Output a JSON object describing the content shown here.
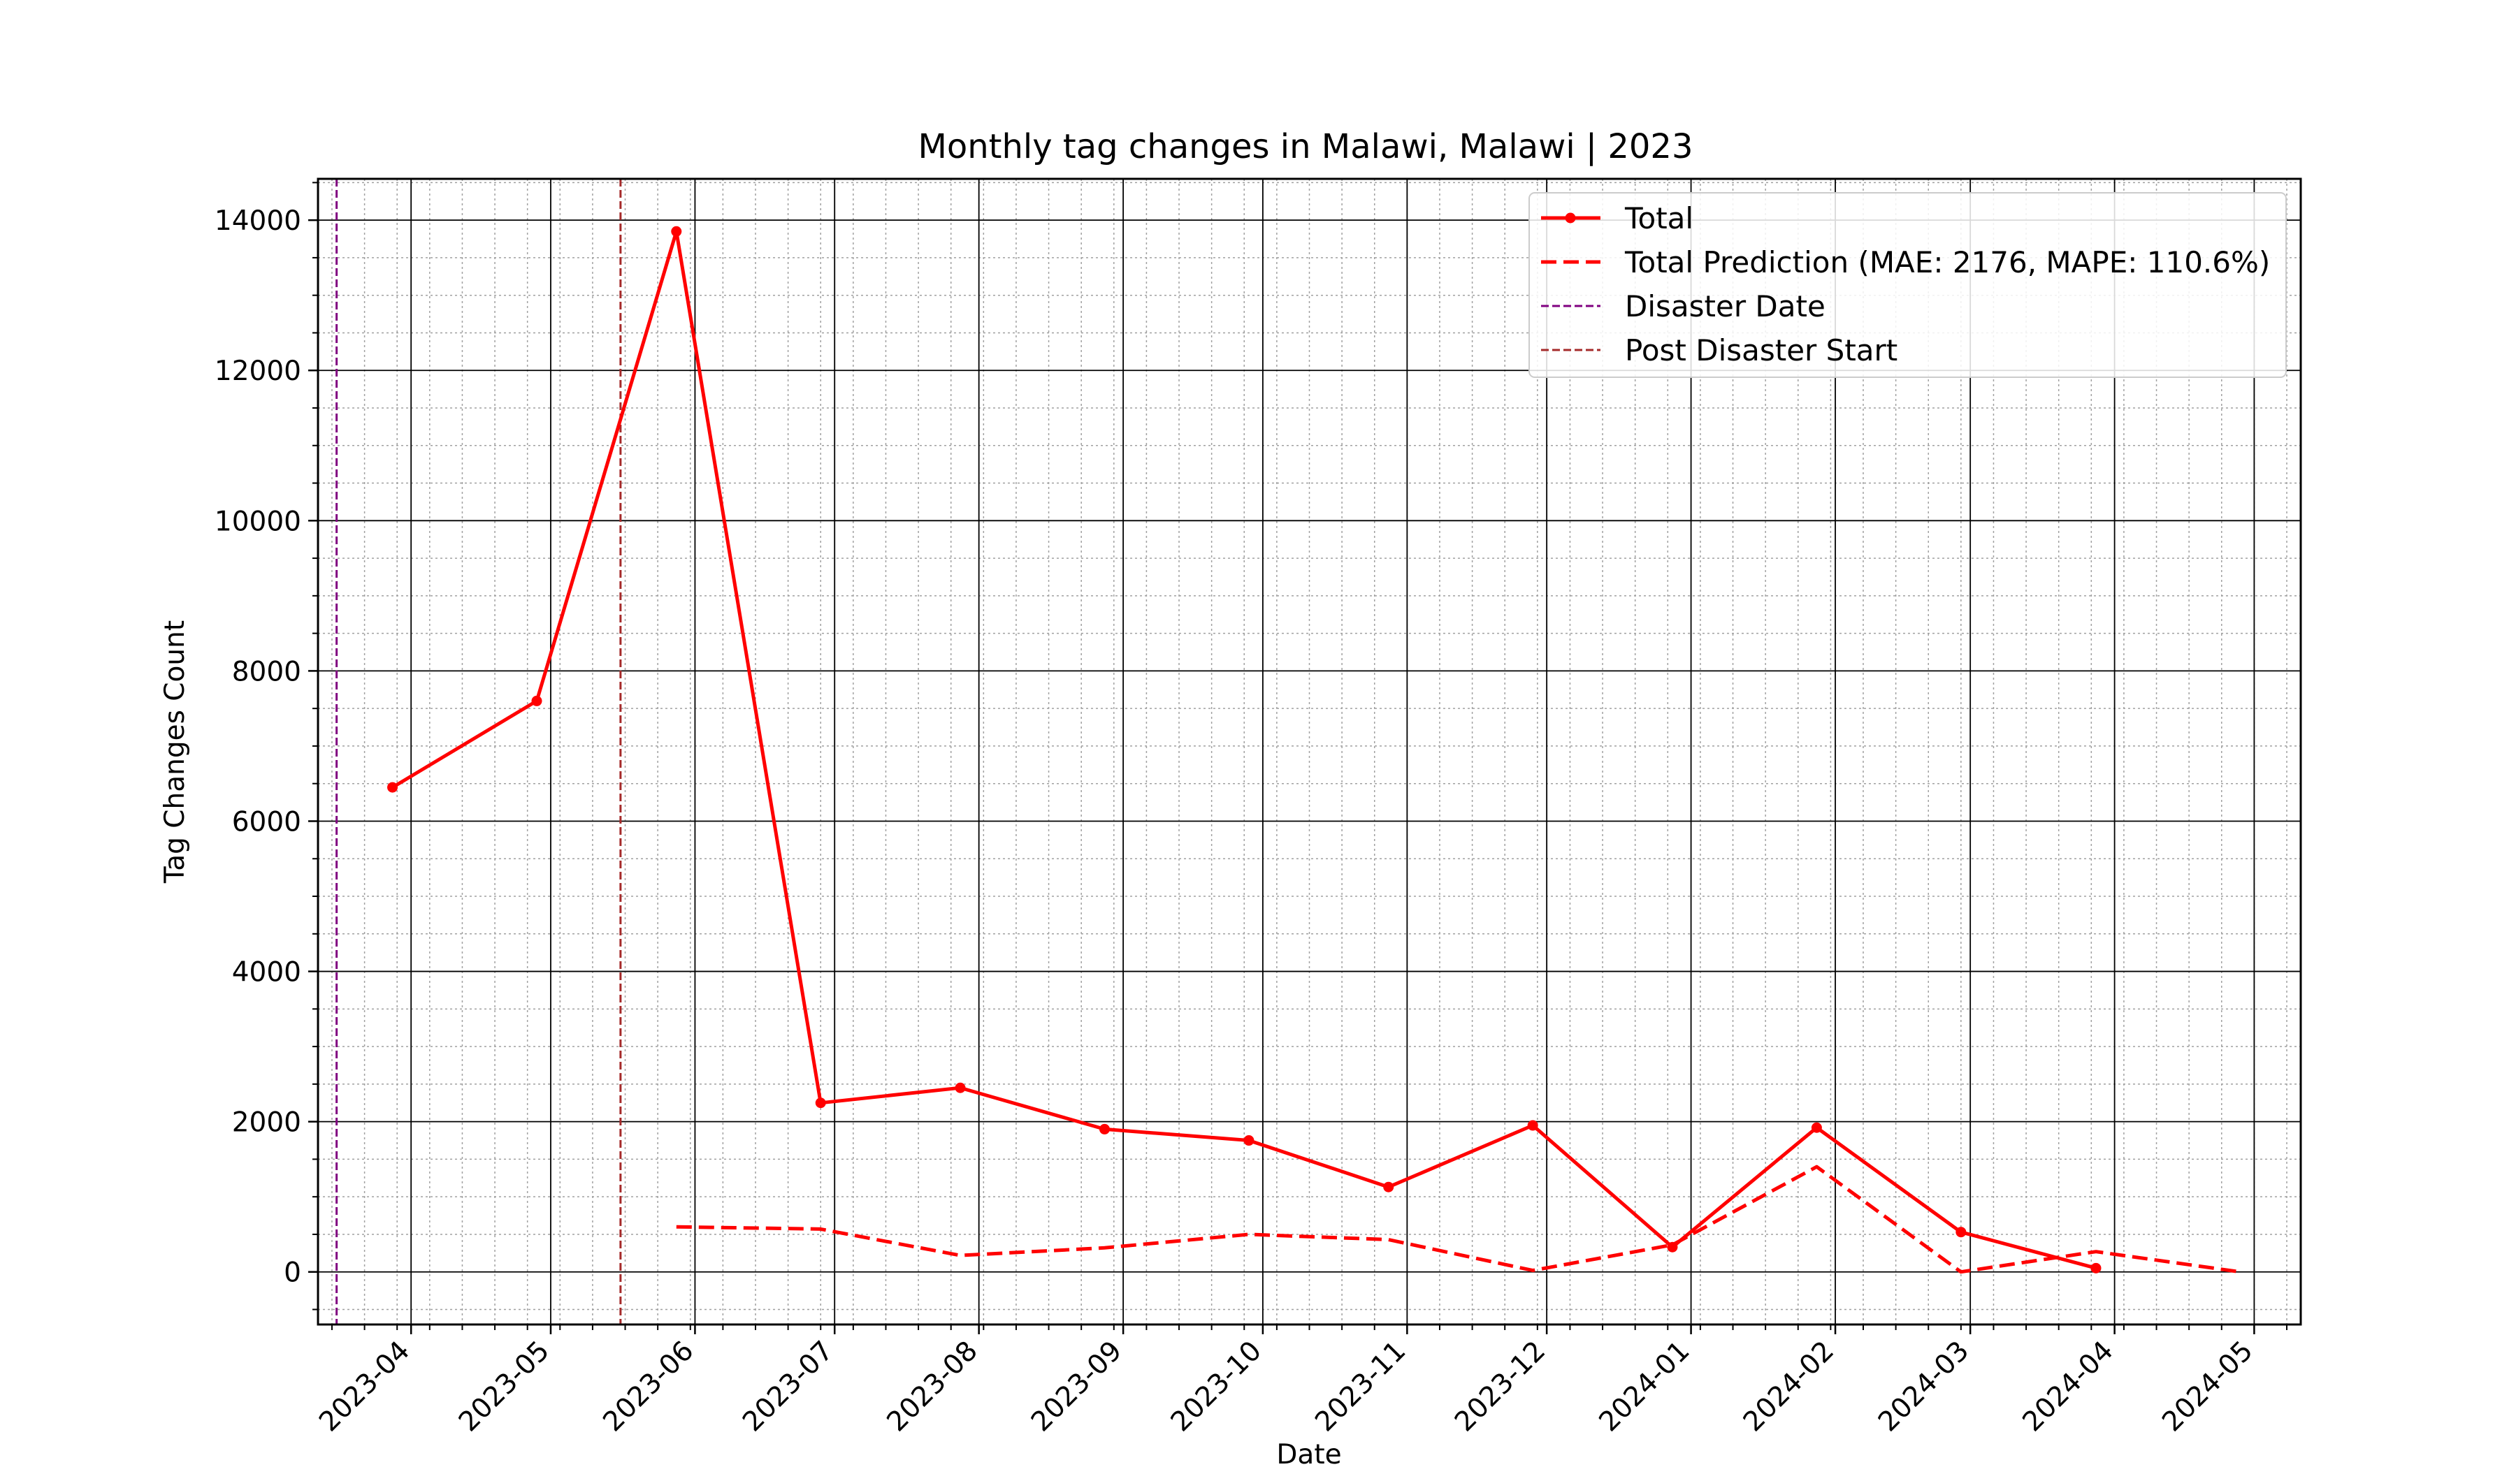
{
  "chart_data": {
    "type": "line",
    "title": "Monthly tag changes in Malawi, Malawi | 2023",
    "xlabel": "Date",
    "ylabel": "Tag Changes Count",
    "xlim": [
      "2023-03-12",
      "2024-05-11"
    ],
    "ylim": [
      -700,
      14550
    ],
    "x_ticks": [
      "2023-04",
      "2023-05",
      "2023-06",
      "2023-07",
      "2023-08",
      "2023-09",
      "2023-10",
      "2023-11",
      "2023-12",
      "2024-01",
      "2024-02",
      "2024-03",
      "2024-04",
      "2024-05"
    ],
    "y_ticks": [
      0,
      2000,
      4000,
      6000,
      8000,
      10000,
      12000,
      14000
    ],
    "grid": true,
    "legend_position": "top-right",
    "series": [
      {
        "name": "Total",
        "style": "solid-markers",
        "color": "#ff0000",
        "points": [
          {
            "x": "2023-03-28",
            "y": 6450
          },
          {
            "x": "2023-04-28",
            "y": 7600
          },
          {
            "x": "2023-05-28",
            "y": 13850
          },
          {
            "x": "2023-06-28",
            "y": 2250
          },
          {
            "x": "2023-07-28",
            "y": 2450
          },
          {
            "x": "2023-08-28",
            "y": 1900
          },
          {
            "x": "2023-09-28",
            "y": 1750
          },
          {
            "x": "2023-10-28",
            "y": 1130
          },
          {
            "x": "2023-11-28",
            "y": 1950
          },
          {
            "x": "2023-12-28",
            "y": 330
          },
          {
            "x": "2024-01-28",
            "y": 1920
          },
          {
            "x": "2024-02-28",
            "y": 530
          },
          {
            "x": "2024-03-28",
            "y": 50
          }
        ]
      },
      {
        "name": "Total Prediction (MAE: 2176, MAPE: 110.6%)",
        "style": "dashed",
        "color": "#ff0000",
        "points": [
          {
            "x": "2023-05-28",
            "y": 600
          },
          {
            "x": "2023-06-28",
            "y": 570
          },
          {
            "x": "2023-07-28",
            "y": 220
          },
          {
            "x": "2023-08-28",
            "y": 320
          },
          {
            "x": "2023-09-28",
            "y": 500
          },
          {
            "x": "2023-10-28",
            "y": 430
          },
          {
            "x": "2023-11-28",
            "y": 20
          },
          {
            "x": "2023-12-28",
            "y": 360
          },
          {
            "x": "2024-01-28",
            "y": 1400
          },
          {
            "x": "2024-02-28",
            "y": 0
          },
          {
            "x": "2024-03-28",
            "y": 270
          },
          {
            "x": "2024-04-28",
            "y": 0
          }
        ]
      }
    ],
    "vlines": [
      {
        "name": "Disaster Date",
        "x": "2023-03-16",
        "color": "#800080",
        "style": "dashed"
      },
      {
        "name": "Post Disaster Start",
        "x": "2023-05-16",
        "color": "#a52a2a",
        "style": "dashed"
      }
    ]
  }
}
